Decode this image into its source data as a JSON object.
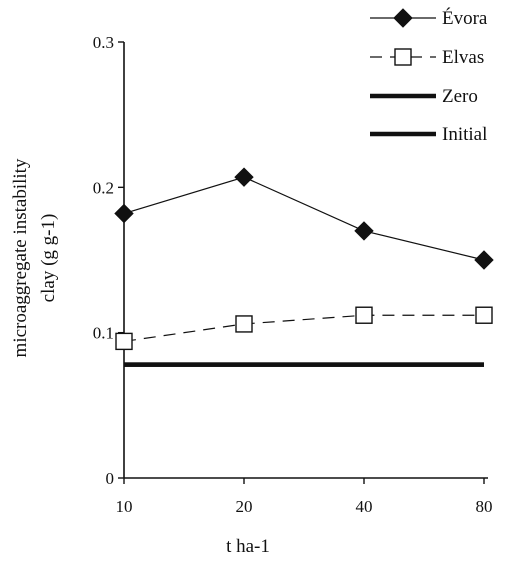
{
  "chart_data": {
    "type": "line",
    "categories": [
      "10",
      "20",
      "40",
      "80"
    ],
    "xlabel": "t  ha-1",
    "ylabel_lines": [
      "microaggregate instability",
      "clay (g g-1)"
    ],
    "ylim": [
      0,
      0.3
    ],
    "yticks": [
      {
        "value": 0,
        "label": "0"
      },
      {
        "value": 0.1,
        "label": "0.1"
      },
      {
        "value": 0.2,
        "label": "0.2"
      },
      {
        "value": 0.3,
        "label": "0.3"
      }
    ],
    "grid": false,
    "legend_position": "top-right",
    "series": [
      {
        "name": "Évora",
        "values": [
          0.182,
          0.207,
          0.17,
          0.15
        ],
        "style": "solid",
        "marker": "diamond-filled",
        "color": "#111111"
      },
      {
        "name": "Elvas",
        "values": [
          0.094,
          0.106,
          0.112,
          0.112
        ],
        "style": "dashed",
        "marker": "square-open",
        "color": "#111111"
      },
      {
        "name": "Zero",
        "values": [
          0.078,
          0.078,
          0.078,
          0.078
        ],
        "style": "thick",
        "marker": "none",
        "color": "#111111"
      },
      {
        "name": "Initial",
        "values": [
          0.078,
          0.078,
          0.078,
          0.078
        ],
        "style": "thick",
        "marker": "none",
        "color": "#111111"
      }
    ]
  }
}
